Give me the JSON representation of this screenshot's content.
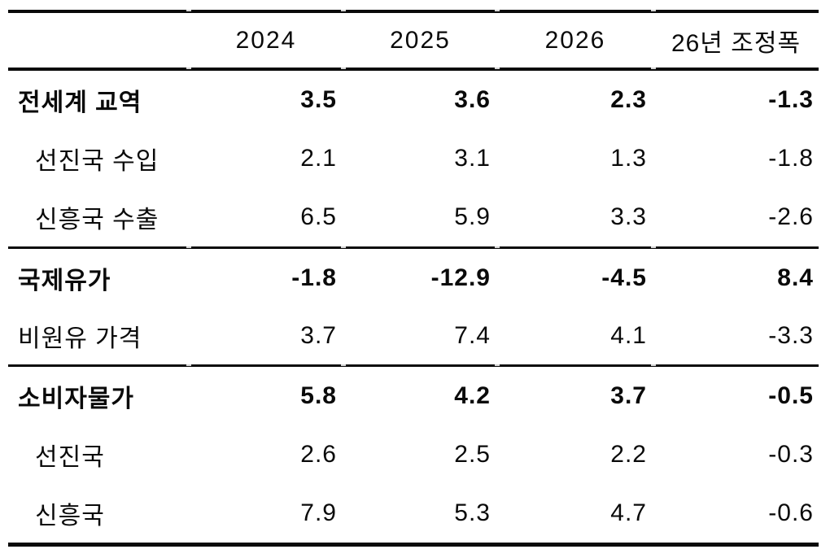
{
  "chart_data": {
    "type": "table",
    "title": "",
    "columns": [
      "2024",
      "2025",
      "2026",
      "26년 조정폭"
    ],
    "sections": [
      {
        "name": "전세계 교역",
        "rows": [
          {
            "label": "전세계 교역",
            "emphasis": true,
            "indent": false,
            "values": [
              3.5,
              3.6,
              2.3,
              -1.3
            ]
          },
          {
            "label": "선진국 수입",
            "emphasis": false,
            "indent": true,
            "values": [
              2.1,
              3.1,
              1.3,
              -1.8
            ]
          },
          {
            "label": "신흥국 수출",
            "emphasis": false,
            "indent": true,
            "values": [
              6.5,
              5.9,
              3.3,
              -2.6
            ]
          }
        ]
      },
      {
        "name": "국제유가",
        "rows": [
          {
            "label": "국제유가",
            "emphasis": true,
            "indent": false,
            "values": [
              -1.8,
              -12.9,
              -4.5,
              8.4
            ]
          },
          {
            "label": "비원유 가격",
            "emphasis": false,
            "indent": false,
            "values": [
              3.7,
              7.4,
              4.1,
              -3.3
            ]
          }
        ]
      },
      {
        "name": "소비자물가",
        "rows": [
          {
            "label": "소비자물가",
            "emphasis": true,
            "indent": false,
            "values": [
              5.8,
              4.2,
              3.7,
              -0.5
            ]
          },
          {
            "label": "선진국",
            "emphasis": false,
            "indent": true,
            "values": [
              2.6,
              2.5,
              2.2,
              -0.3
            ]
          },
          {
            "label": "신흥국",
            "emphasis": false,
            "indent": true,
            "values": [
              7.9,
              5.3,
              4.7,
              -0.6
            ]
          }
        ]
      }
    ],
    "layout": {
      "grid": "off",
      "rules": "horizontal-only",
      "text_color": "#0a0a0a",
      "background": "#ffffff"
    }
  }
}
